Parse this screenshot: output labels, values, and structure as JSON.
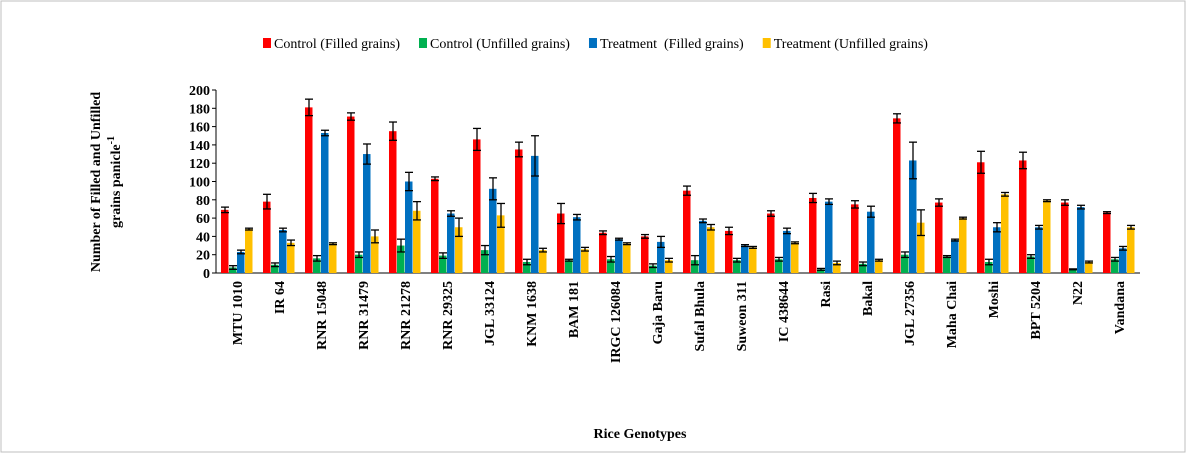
{
  "chart_data": {
    "type": "bar",
    "xlabel": "Rice Genotypes",
    "ylabel": [
      "Number of Filled and Unfilled",
      "grains panicle"
    ],
    "ylabel_superscript": "-1",
    "categories": [
      "MTU 1010",
      "IR 64",
      "RNR 15048",
      "RNR 31479",
      "RNR 21278",
      "RNR 29325",
      "JGL 33124",
      "KNM 1638",
      "BAM 181",
      "IRGC 126084",
      "Gaja Baru",
      "Sufal Bhula",
      "Suweon 311",
      "IC 438644",
      "Rasi",
      "Bakal",
      "JGL 27356",
      "Maha Chai",
      "Moshi",
      "BPT 5204",
      "N22",
      "Vandana"
    ],
    "series": [
      {
        "name": "Control (Filled grains)",
        "color": "#ff0000",
        "values": [
          69,
          78,
          181,
          171,
          155,
          103,
          146,
          135,
          65,
          44,
          40,
          90,
          46,
          65,
          82,
          75,
          169,
          77,
          121,
          123,
          77,
          66
        ],
        "errors": [
          3,
          8,
          9,
          4,
          10,
          2,
          12,
          8,
          11,
          2,
          2,
          5,
          4,
          3,
          5,
          4,
          5,
          4,
          12,
          9,
          3,
          1
        ]
      },
      {
        "name": "Control (Unfilled grains)",
        "color": "#00b050",
        "values": [
          6,
          9,
          16,
          20,
          30,
          19,
          25,
          12,
          14,
          15,
          8,
          14,
          14,
          15,
          4,
          10,
          20,
          18,
          12,
          18,
          4,
          15
        ],
        "errors": [
          2,
          2,
          3,
          3,
          7,
          3,
          5,
          3,
          1,
          3,
          2,
          5,
          2,
          2,
          1,
          2,
          3,
          1,
          3,
          2,
          0.5,
          2
        ]
      },
      {
        "name": "Treatment  (Filled grains)",
        "color": "#0070c0",
        "values": [
          23,
          47,
          153,
          130,
          100,
          65,
          92,
          128,
          61,
          37,
          34,
          57,
          30,
          46,
          78,
          67,
          123,
          36,
          50,
          50,
          72,
          27
        ],
        "errors": [
          2,
          2,
          3,
          11,
          10,
          3,
          12,
          22,
          3,
          1,
          6,
          2,
          1,
          3,
          3,
          6,
          20,
          1,
          5,
          2,
          2,
          2
        ]
      },
      {
        "name": "Treatment (Unfilled grains)",
        "color": "#ffc000",
        "values": [
          48,
          33,
          32,
          40,
          68,
          50,
          63,
          25,
          26,
          32,
          14,
          50,
          28,
          33,
          11,
          14,
          55,
          60,
          86,
          79,
          12,
          50
        ],
        "errors": [
          1,
          3,
          1,
          7,
          10,
          10,
          13,
          2,
          2,
          1,
          2,
          3,
          1,
          1,
          2,
          1,
          14,
          1,
          2,
          1,
          1,
          2
        ]
      }
    ],
    "ylim": [
      0,
      200
    ],
    "yticks": [
      0,
      20,
      40,
      60,
      80,
      100,
      120,
      140,
      160,
      180,
      200
    ],
    "grid": false
  }
}
